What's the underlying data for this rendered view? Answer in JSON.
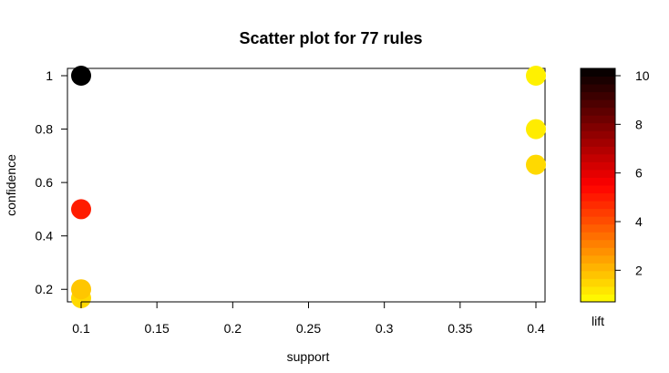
{
  "chart_data": {
    "type": "scatter",
    "title": "Scatter plot for 77 rules",
    "xlabel": "support",
    "ylabel": "confidence",
    "xlim": [
      0.1,
      0.4
    ],
    "ylim": [
      0.1667,
      1.0
    ],
    "x_ticks": [
      0.1,
      0.15,
      0.2,
      0.25,
      0.3,
      0.35,
      0.4
    ],
    "x_tick_labels": [
      "0.1",
      "0.15",
      "0.2",
      "0.25",
      "0.3",
      "0.35",
      "0.4"
    ],
    "y_ticks": [
      0.2,
      0.4,
      0.6,
      0.8,
      1.0
    ],
    "y_tick_labels": [
      "0.2",
      "0.4",
      "0.6",
      "0.8",
      "1"
    ],
    "color_scale": {
      "label": "lift",
      "min": 1.0,
      "max": 10.0,
      "ticks": [
        2,
        4,
        6,
        8,
        10
      ],
      "tick_labels": [
        "2",
        "4",
        "6",
        "8",
        "10"
      ],
      "low_color": "#FFFF00",
      "mid_color": "#FF0000",
      "high_color": "#000000"
    },
    "points": [
      {
        "support": 0.1,
        "confidence": 1.0,
        "lift": 10.0
      },
      {
        "support": 0.1,
        "confidence": 0.5,
        "lift": 5.0
      },
      {
        "support": 0.1,
        "confidence": 0.2,
        "lift": 2.0
      },
      {
        "support": 0.1,
        "confidence": 0.1667,
        "lift": 1.67
      },
      {
        "support": 0.4,
        "confidence": 1.0,
        "lift": 1.25
      },
      {
        "support": 0.4,
        "confidence": 0.8,
        "lift": 1.33
      },
      {
        "support": 0.4,
        "confidence": 0.6667,
        "lift": 1.67
      }
    ]
  }
}
